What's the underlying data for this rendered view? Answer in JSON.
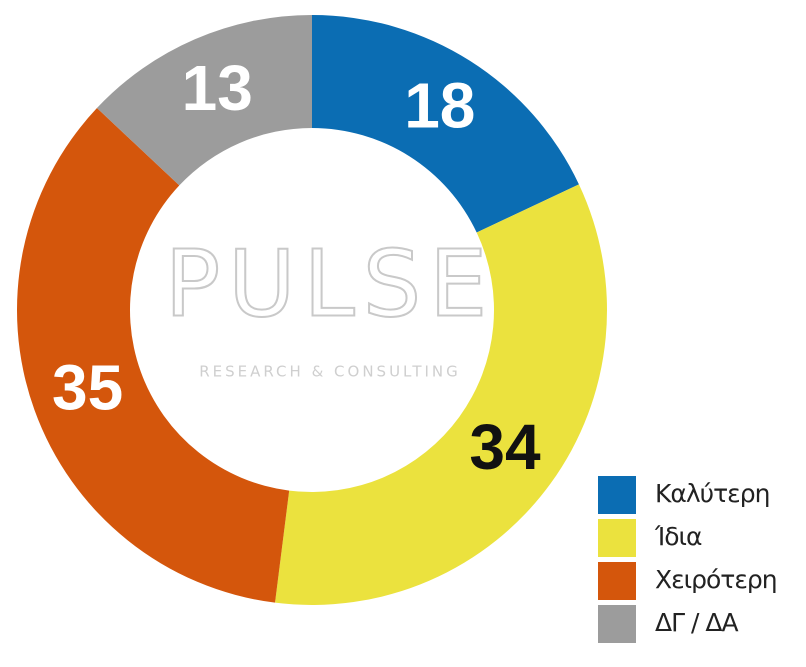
{
  "chart_data": {
    "type": "donut",
    "categories": [
      "Καλύτερη",
      "Ίδια",
      "Χειρότερη",
      "ΔΓ / ΔΑ"
    ],
    "values": [
      18,
      34,
      35,
      13
    ],
    "colors": [
      "#0b6db3",
      "#ebe23e",
      "#d4560c",
      "#9c9c9c"
    ],
    "label_colors": [
      "#ffffff",
      "#111111",
      "#ffffff",
      "#ffffff"
    ],
    "watermark": "PULSE",
    "watermark_subtitle": "RESEARCH & CONSULTING",
    "legend": "bottom-right"
  }
}
